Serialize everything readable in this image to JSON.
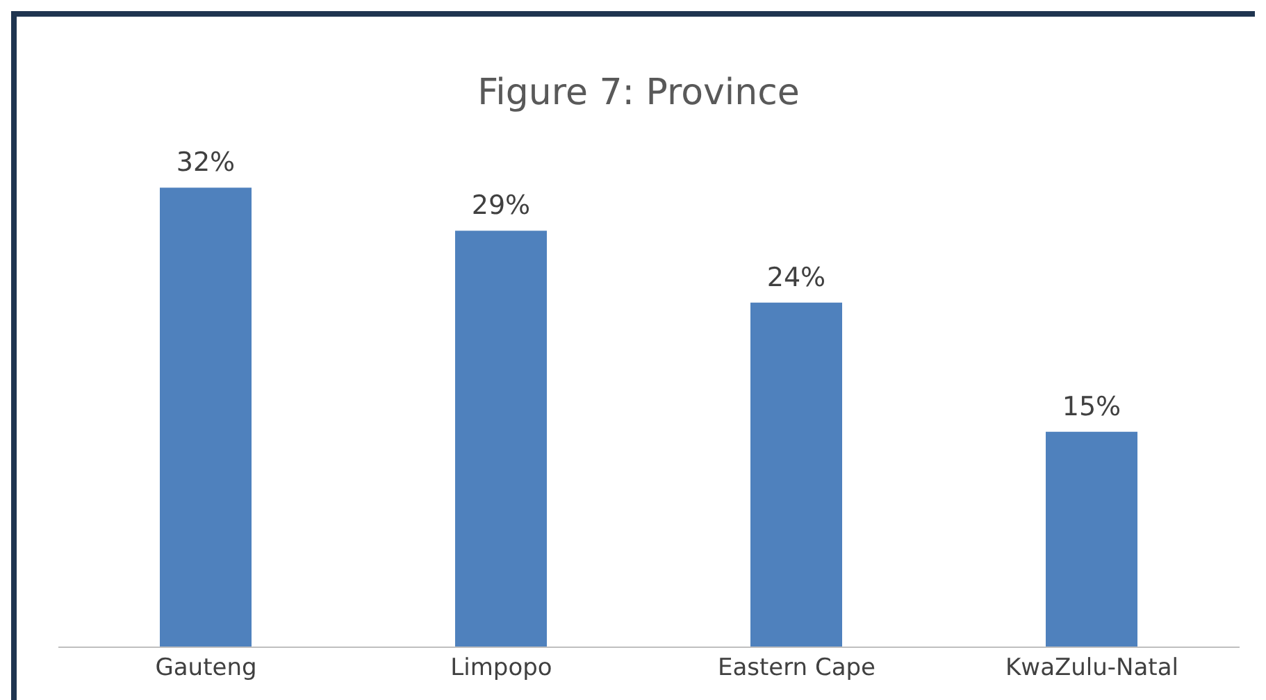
{
  "chart_data": {
    "type": "bar",
    "title": "Figure 7: Province",
    "categories": [
      "Gauteng",
      "Limpopo",
      "Eastern Cape",
      "KwaZulu-Natal"
    ],
    "values": [
      32,
      29,
      24,
      15
    ],
    "value_labels": [
      "32%",
      "29%",
      "24%",
      "15%"
    ],
    "color": "#4f81bd",
    "grid": false,
    "legend": false
  }
}
